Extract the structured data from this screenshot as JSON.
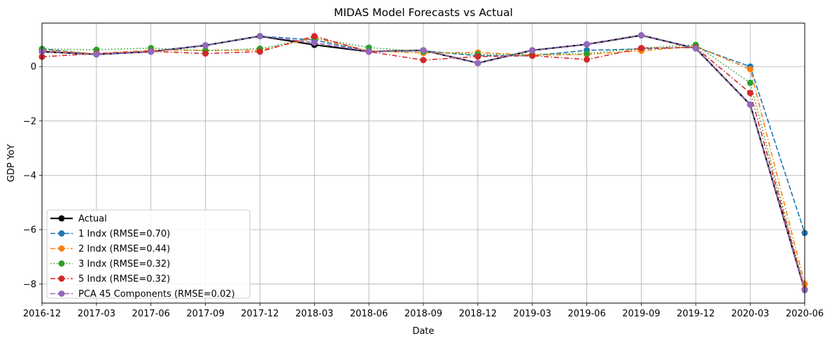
{
  "chart_data": {
    "type": "line",
    "title": "MIDAS Model Forecasts vs Actual",
    "xlabel": "Date",
    "ylabel": "GDP YoY",
    "x": [
      "2016-12",
      "2017-03",
      "2017-06",
      "2017-09",
      "2017-12",
      "2018-03",
      "2018-06",
      "2018-09",
      "2018-12",
      "2019-03",
      "2019-06",
      "2019-09",
      "2019-12",
      "2020-03",
      "2020-06"
    ],
    "xlim": [
      "2016-12",
      "2020-06"
    ],
    "ylim": [
      -8.7,
      1.6
    ],
    "yticks": [
      0,
      -2,
      -4,
      -6,
      -8
    ],
    "ytick_labels": [
      "0",
      "−2",
      "−4",
      "−6",
      "−8"
    ],
    "grid": true,
    "legend_position": "lower-left",
    "series": [
      {
        "name": "Actual",
        "color": "#000000",
        "style": "solid",
        "width": 2.2,
        "values": [
          0.55,
          0.45,
          0.55,
          0.78,
          1.12,
          0.8,
          0.55,
          0.6,
          0.13,
          0.6,
          0.82,
          1.15,
          0.67,
          -1.4,
          -8.22
        ]
      },
      {
        "name": "1 Indx (RMSE=0.70)",
        "color": "#1f77b4",
        "style": "dashed",
        "width": 1.6,
        "values": [
          0.65,
          0.45,
          0.56,
          0.78,
          1.12,
          0.98,
          0.55,
          0.58,
          0.4,
          0.4,
          0.6,
          0.65,
          0.72,
          0.0,
          -6.12
        ]
      },
      {
        "name": "2 Indx (RMSE=0.44)",
        "color": "#ff7f0e",
        "style": "dashdot",
        "width": 1.6,
        "values": [
          0.6,
          0.48,
          0.6,
          0.6,
          0.6,
          1.05,
          0.58,
          0.5,
          0.52,
          0.42,
          0.45,
          0.58,
          0.75,
          -0.1,
          -8.0
        ]
      },
      {
        "name": "3 Indx (RMSE=0.32)",
        "color": "#2ca02c",
        "style": "dotted",
        "width": 1.6,
        "values": [
          0.65,
          0.62,
          0.68,
          0.58,
          0.66,
          1.05,
          0.7,
          0.55,
          0.45,
          0.45,
          0.48,
          0.68,
          0.8,
          -0.6,
          -8.2
        ]
      },
      {
        "name": "5 Indx  (RMSE=0.32)",
        "color": "#d62728",
        "style": "dashdot",
        "width": 1.6,
        "values": [
          0.36,
          0.48,
          0.56,
          0.48,
          0.55,
          1.12,
          0.55,
          0.24,
          0.37,
          0.4,
          0.26,
          0.68,
          0.7,
          -0.97,
          -8.2
        ]
      },
      {
        "name": "PCA 45 Components (RMSE=0.02)",
        "color": "#9467bd",
        "style": "dashed",
        "width": 1.6,
        "values": [
          0.55,
          0.45,
          0.55,
          0.78,
          1.12,
          0.88,
          0.55,
          0.6,
          0.13,
          0.6,
          0.82,
          1.15,
          0.67,
          -1.4,
          -8.22
        ]
      }
    ]
  }
}
